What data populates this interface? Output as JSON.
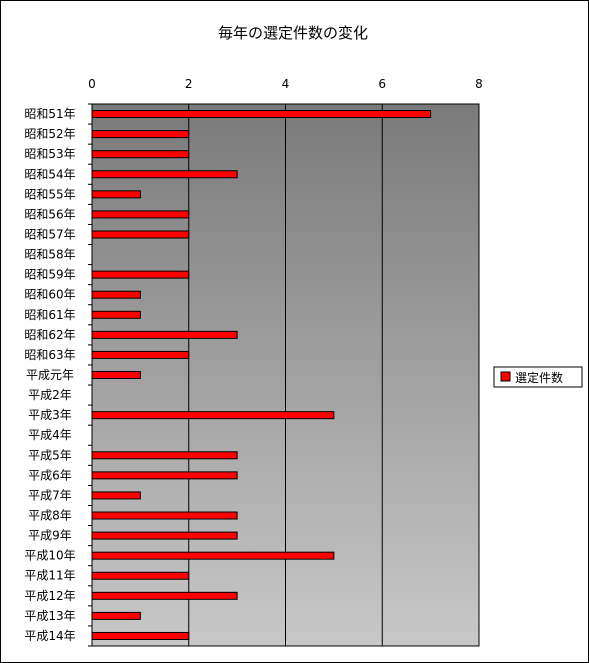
{
  "chart_data": {
    "type": "bar",
    "orientation": "horizontal",
    "title": "毎年の選定件数の変化",
    "xlabel": "",
    "ylabel": "",
    "xlim": [
      0,
      8
    ],
    "xticks": [
      0,
      2,
      4,
      6,
      8
    ],
    "grid": true,
    "legend_position": "right",
    "categories": [
      "昭和51年",
      "昭和52年",
      "昭和53年",
      "昭和54年",
      "昭和55年",
      "昭和56年",
      "昭和57年",
      "昭和58年",
      "昭和59年",
      "昭和60年",
      "昭和61年",
      "昭和62年",
      "昭和63年",
      "平成元年",
      "平成2年",
      "平成3年",
      "平成4年",
      "平成5年",
      "平成6年",
      "平成7年",
      "平成8年",
      "平成9年",
      "平成10年",
      "平成11年",
      "平成12年",
      "平成13年",
      "平成14年"
    ],
    "series": [
      {
        "name": "選定件数",
        "color": "#ff0000",
        "values": [
          7,
          2,
          2,
          3,
          1,
          2,
          2,
          0,
          2,
          1,
          1,
          3,
          2,
          1,
          0,
          5,
          0,
          3,
          3,
          1,
          3,
          3,
          5,
          2,
          3,
          1,
          2
        ]
      }
    ]
  }
}
